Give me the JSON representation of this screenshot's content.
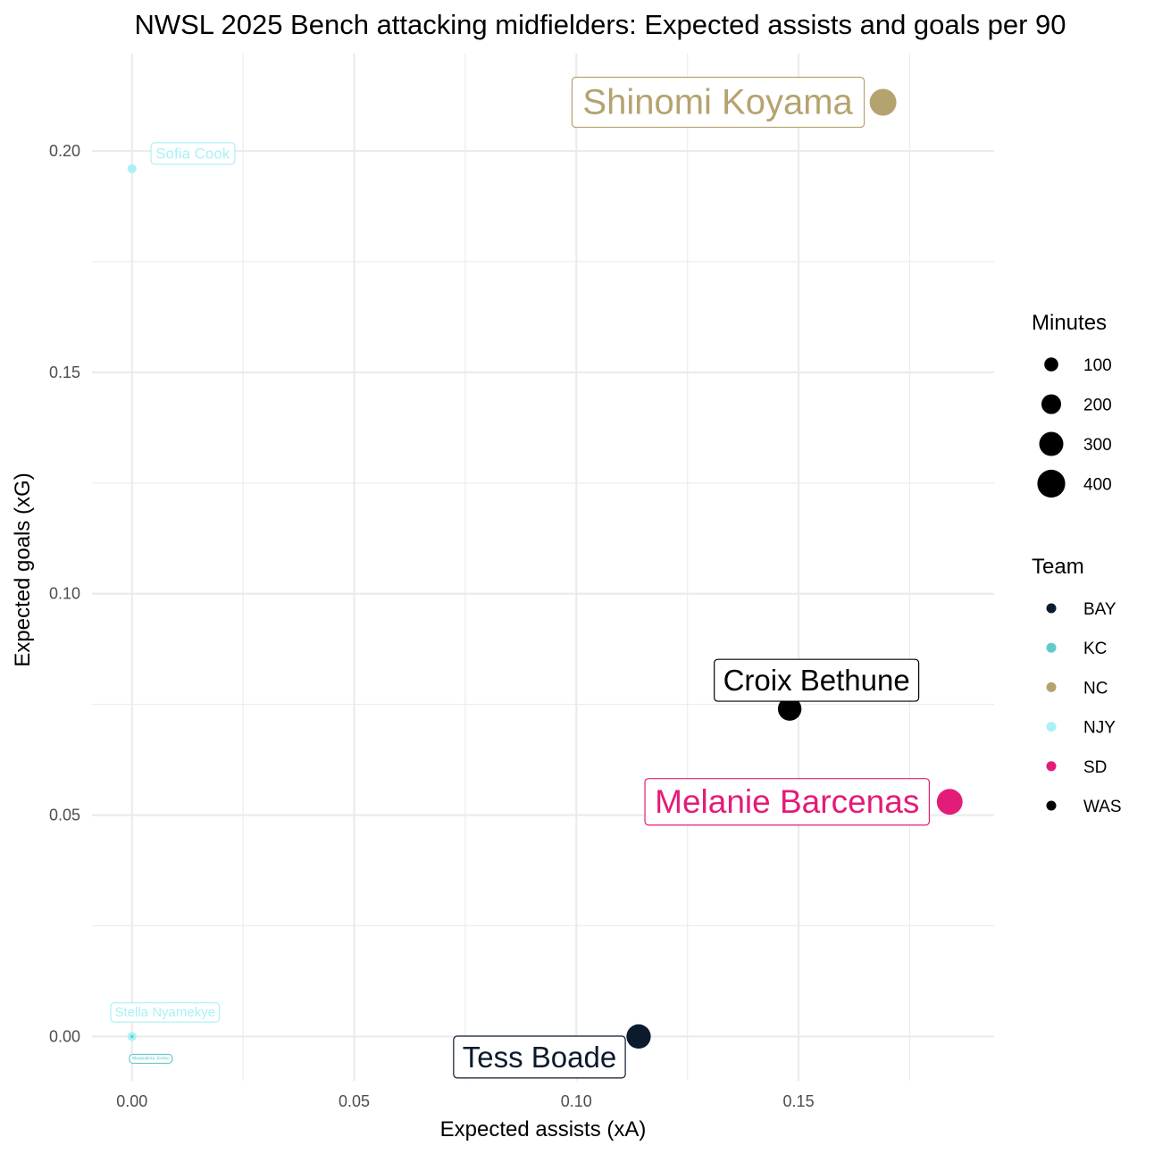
{
  "chart_data": {
    "type": "scatter",
    "title": "NWSL 2025 Bench attacking midfielders: Expected assists and goals per 90",
    "xlabel": "Expected assists (xA)",
    "ylabel": "Expected goals (xG)",
    "xlim": [
      -0.009,
      0.194
    ],
    "ylim": [
      -0.01,
      0.222
    ],
    "x_ticks": [
      {
        "value": 0.0,
        "label": "0.00"
      },
      {
        "value": 0.05,
        "label": "0.05"
      },
      {
        "value": 0.1,
        "label": "0.10"
      },
      {
        "value": 0.15,
        "label": "0.15"
      }
    ],
    "y_ticks": [
      {
        "value": 0.0,
        "label": "0.00"
      },
      {
        "value": 0.05,
        "label": "0.05"
      },
      {
        "value": 0.1,
        "label": "0.10"
      },
      {
        "value": 0.15,
        "label": "0.15"
      },
      {
        "value": 0.2,
        "label": "0.20"
      }
    ],
    "grid": true,
    "team_colors": {
      "BAY": "#0b1a2c",
      "KC": "#62cbc9",
      "NC": "#b5a36f",
      "NJY": "#a9f1f6",
      "SD": "#e31c79",
      "WAS": "#000000"
    },
    "points": [
      {
        "player": "Shinomi Koyama",
        "team": "NC",
        "xA": 0.169,
        "xG": 0.211,
        "minutes": 400
      },
      {
        "player": "Sofia Cook",
        "team": "NJY",
        "xA": 0.0,
        "xG": 0.196,
        "minutes": 45
      },
      {
        "player": "Croix Bethune",
        "team": "WAS",
        "xA": 0.148,
        "xG": 0.074,
        "minutes": 310
      },
      {
        "player": "Melanie Barcenas",
        "team": "SD",
        "xA": 0.184,
        "xG": 0.053,
        "minutes": 370
      },
      {
        "player": "Tess Boade",
        "team": "BAY",
        "xA": 0.114,
        "xG": 0.0,
        "minutes": 330
      },
      {
        "player": "Stella Nyamekye",
        "team": "NJY",
        "xA": 0.0,
        "xG": 0.0,
        "minutes": 45
      },
      {
        "player": "Mwanalima Jereko",
        "team": "KC",
        "xA": 0.0,
        "xG": 0.0,
        "minutes": 5
      }
    ],
    "legend": {
      "position": "right",
      "size": {
        "title": "Minutes",
        "entries": [
          {
            "label": "100",
            "value": 100
          },
          {
            "label": "200",
            "value": 200
          },
          {
            "label": "300",
            "value": 300
          },
          {
            "label": "400",
            "value": 400
          }
        ]
      },
      "color": {
        "title": "Team",
        "entries": [
          "BAY",
          "KC",
          "NC",
          "NJY",
          "SD",
          "WAS"
        ]
      }
    }
  }
}
